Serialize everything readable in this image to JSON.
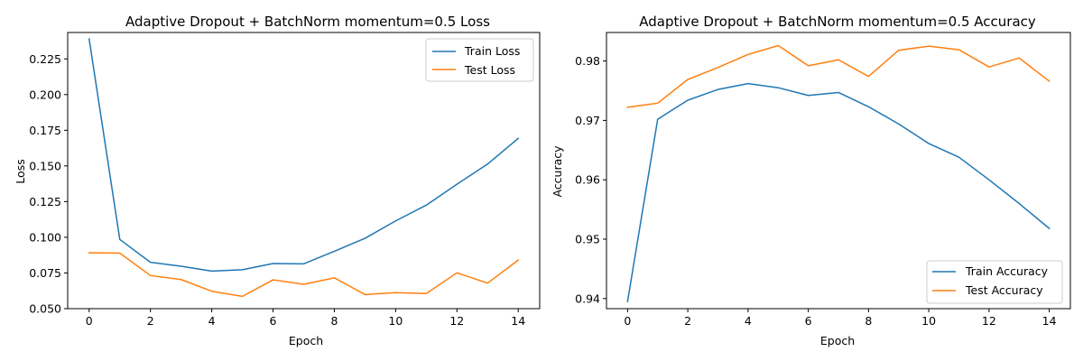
{
  "chart_data": [
    {
      "type": "line",
      "title": "Adaptive Dropout + BatchNorm momentum=0.5 Loss",
      "xlabel": "Epoch",
      "ylabel": "Loss",
      "xlim": [
        -0.7,
        14.7
      ],
      "ylim": [
        0.05,
        0.2435
      ],
      "xticks": [
        0,
        2,
        4,
        6,
        8,
        10,
        12,
        14
      ],
      "xtick_labels": [
        "0",
        "2",
        "4",
        "6",
        "8",
        "10",
        "12",
        "14"
      ],
      "yticks": [
        0.05,
        0.075,
        0.1,
        0.125,
        0.15,
        0.175,
        0.2,
        0.225
      ],
      "ytick_labels": [
        "0.050",
        "0.075",
        "0.100",
        "0.125",
        "0.150",
        "0.175",
        "0.200",
        "0.225"
      ],
      "grid": false,
      "legend_position": "top-right",
      "x": [
        0,
        1,
        2,
        3,
        4,
        5,
        6,
        7,
        8,
        9,
        10,
        11,
        12,
        13,
        14
      ],
      "series": [
        {
          "name": "Train Loss",
          "color": "#1f77b4",
          "values": [
            0.239,
            0.0985,
            0.0825,
            0.0797,
            0.0763,
            0.0773,
            0.0816,
            0.0814,
            0.0902,
            0.0993,
            0.1115,
            0.1225,
            0.1372,
            0.1513,
            0.1693
          ]
        },
        {
          "name": "Test Loss",
          "color": "#ff7f0e",
          "values": [
            0.0891,
            0.0889,
            0.0732,
            0.0704,
            0.0622,
            0.0586,
            0.0702,
            0.0671,
            0.0716,
            0.0599,
            0.0612,
            0.0606,
            0.0751,
            0.0679,
            0.084
          ]
        }
      ]
    },
    {
      "type": "line",
      "title": "Adaptive Dropout + BatchNorm momentum=0.5 Accuracy",
      "xlabel": "Epoch",
      "ylabel": "Accuracy",
      "xlim": [
        -0.7,
        14.7
      ],
      "ylim": [
        0.9383,
        0.9848
      ],
      "xticks": [
        0,
        2,
        4,
        6,
        8,
        10,
        12,
        14
      ],
      "xtick_labels": [
        "0",
        "2",
        "4",
        "6",
        "8",
        "10",
        "12",
        "14"
      ],
      "yticks": [
        0.94,
        0.95,
        0.96,
        0.97,
        0.98
      ],
      "ytick_labels": [
        "0.94",
        "0.95",
        "0.96",
        "0.97",
        "0.98"
      ],
      "grid": false,
      "legend_position": "bottom-right",
      "x": [
        0,
        1,
        2,
        3,
        4,
        5,
        6,
        7,
        8,
        9,
        10,
        11,
        12,
        13,
        14
      ],
      "series": [
        {
          "name": "Train Accuracy",
          "color": "#1f77b4",
          "values": [
            0.9395,
            0.9702,
            0.9734,
            0.9752,
            0.9762,
            0.9755,
            0.9742,
            0.9747,
            0.9723,
            0.9694,
            0.9661,
            0.9638,
            0.96,
            0.956,
            0.9518
          ]
        },
        {
          "name": "Test Accuracy",
          "color": "#ff7f0e",
          "values": [
            0.9722,
            0.9729,
            0.9769,
            0.9789,
            0.9811,
            0.9826,
            0.9792,
            0.9802,
            0.9774,
            0.9818,
            0.9825,
            0.9819,
            0.979,
            0.9805,
            0.9766
          ]
        }
      ]
    }
  ]
}
